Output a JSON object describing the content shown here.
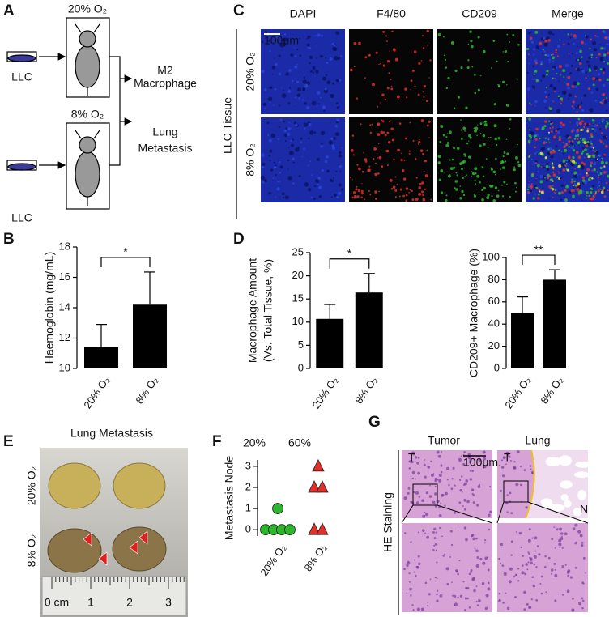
{
  "panel_labels": [
    "A",
    "B",
    "C",
    "D",
    "E",
    "F",
    "G"
  ],
  "schematic": {
    "conditions": [
      "20% O₂",
      "8% O₂"
    ],
    "cell_line": [
      "LLC",
      "LLC"
    ],
    "outcomes": [
      [
        "M2",
        "Macrophage"
      ],
      [
        "Lung",
        "Metastasis"
      ]
    ]
  },
  "staining": {
    "side_label": "LLC Tissue",
    "rows": [
      "20% O₂",
      "8% O₂"
    ],
    "scale_bar": "100μm",
    "channels": [
      {
        "name": "DAPI",
        "color": "#2a44d8"
      },
      {
        "name": "F4/80",
        "color": "#e0302a"
      },
      {
        "name": "CD209",
        "color": "#2eb82e"
      },
      {
        "name": "Merge",
        "color": "#f0a030"
      }
    ]
  },
  "chart_data": [
    {
      "type": "bar",
      "y_label": [
        "Haemoglobin (mg/mL)"
      ],
      "categories": [
        "20% O₂",
        "8% O₂"
      ],
      "values": [
        11.4,
        14.2
      ],
      "errors": [
        1.5,
        2.15
      ],
      "color": "#000000",
      "ylim": [
        10,
        18
      ],
      "yticks": [
        10,
        12,
        14,
        16,
        18
      ],
      "significance": "*"
    },
    {
      "type": "bar",
      "y_label": [
        "Macrophage Amount",
        "(Vs. Total Tissue, %)"
      ],
      "categories": [
        "20% O₂",
        "8% O₂"
      ],
      "values": [
        10.7,
        16.4
      ],
      "errors": [
        3.1,
        4.1
      ],
      "color": "#000000",
      "ylim": [
        0,
        25
      ],
      "yticks": [
        0,
        5,
        10,
        15,
        20,
        25
      ],
      "significance": "*"
    },
    {
      "type": "bar",
      "y_label": [
        "CD209+ Macrophage (%)"
      ],
      "categories": [
        "20% O₂",
        "8% O₂"
      ],
      "values": [
        50,
        80
      ],
      "errors": [
        14.5,
        9
      ],
      "color": "#000000",
      "ylim": [
        0,
        100
      ],
      "yticks": [
        0,
        20,
        40,
        60,
        80,
        100
      ],
      "significance": "**"
    },
    {
      "type": "scatter",
      "y_label": [
        "Metastasis Node"
      ],
      "categories": [
        "20% O₂",
        "8% O₂"
      ],
      "ylim": [
        -0.3,
        3.3
      ],
      "yticks": [
        0,
        1,
        2,
        3
      ],
      "annotations": [
        {
          "text": "20%",
          "color": "#2db52d"
        },
        {
          "text": "60%",
          "color": "#e0302a"
        }
      ],
      "series": [
        {
          "color": "#2db52d",
          "marker": "circle",
          "values": [
            1,
            0,
            0,
            0,
            0
          ]
        },
        {
          "color": "#e0302a",
          "marker": "triangle",
          "values": [
            3,
            2,
            2,
            0,
            0
          ]
        }
      ]
    }
  ],
  "photo": {
    "title": "Lung Metastasis",
    "rows": [
      "20% O₂",
      "8% O₂"
    ],
    "ruler": [
      "0 cm",
      "1",
      "2",
      "3"
    ]
  },
  "histology": {
    "columns": [
      "Tumor",
      "Lung"
    ],
    "side_label": "HE Staining",
    "scale_bar": "100μm",
    "regions": [
      "T",
      "T",
      "N"
    ]
  }
}
